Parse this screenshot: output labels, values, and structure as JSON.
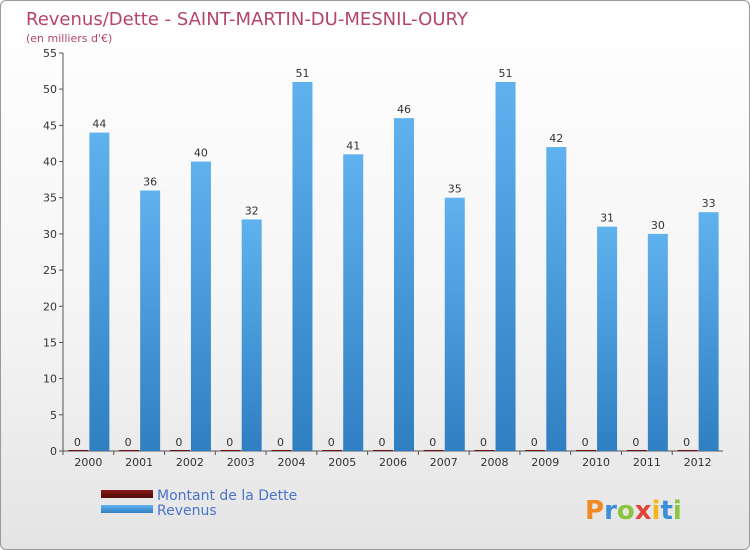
{
  "chart_data": {
    "type": "bar",
    "title": "Revenus/Dette - SAINT-MARTIN-DU-MESNIL-OURY",
    "subtitle": "(en milliers d'€)",
    "categories": [
      "2000",
      "2001",
      "2002",
      "2003",
      "2004",
      "2005",
      "2006",
      "2007",
      "2008",
      "2009",
      "2010",
      "2011",
      "2012"
    ],
    "series": [
      {
        "name": "Montant de la Dette",
        "color": "#6b0f0f",
        "values": [
          0,
          0,
          0,
          0,
          0,
          0,
          0,
          0,
          0,
          0,
          0,
          0,
          0
        ]
      },
      {
        "name": "Revenus",
        "color": "#4a9fe0",
        "values": [
          44,
          36,
          40,
          32,
          51,
          41,
          46,
          35,
          51,
          42,
          31,
          30,
          33
        ]
      }
    ],
    "ylim": [
      0,
      55
    ],
    "yticks": [
      0,
      5,
      10,
      15,
      20,
      25,
      30,
      35,
      40,
      45,
      50,
      55
    ],
    "grid": false,
    "legend_position": "bottom-left"
  },
  "brand": "Proxiti"
}
